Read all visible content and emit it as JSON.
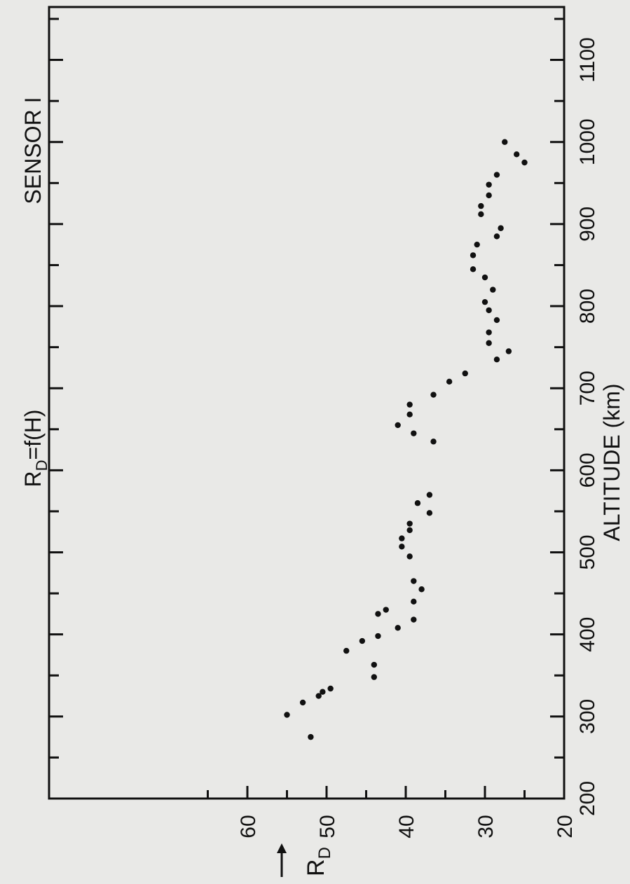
{
  "chart_data": {
    "type": "scatter",
    "title": "R",
    "title_subscript": "D",
    "title_suffix": "=f(H)",
    "subtitle": "SENSOR I",
    "xlabel": "ALTITUDE (km)",
    "ylabel": "R",
    "ylabel_subscript": "D",
    "xlim": [
      200,
      1200
    ],
    "ylim": [
      20,
      70
    ],
    "xticks": [
      200,
      300,
      400,
      500,
      600,
      700,
      800,
      900,
      1000,
      1100
    ],
    "yticks": [
      20,
      30,
      40,
      50,
      60
    ],
    "grid": false,
    "orientation": "rotated 90 degrees counterclockwise",
    "x": [
      275,
      302,
      317,
      325,
      330,
      334,
      348,
      363,
      380,
      392,
      398,
      408,
      418,
      425,
      430,
      440,
      455,
      465,
      495,
      507,
      517,
      527,
      535,
      548,
      560,
      570,
      635,
      645,
      655,
      668,
      680,
      692,
      708,
      718,
      735,
      745,
      755,
      768,
      783,
      795,
      805,
      820,
      835,
      845,
      862,
      875,
      885,
      895,
      912,
      922,
      935,
      948,
      960,
      975,
      985,
      1000
    ],
    "y": [
      52,
      55,
      53,
      51,
      50.5,
      49.5,
      44,
      44,
      47.5,
      45.5,
      43.5,
      41,
      39,
      43.5,
      42.5,
      39,
      38,
      39,
      39.5,
      40.5,
      40.5,
      39.5,
      39.5,
      37,
      38.5,
      37,
      36.5,
      39,
      41,
      39.5,
      39.5,
      36.5,
      34.5,
      32.5,
      28.5,
      27,
      29.5,
      29.5,
      28.5,
      29.5,
      30,
      29,
      30,
      31.5,
      31.5,
      31,
      28.5,
      28,
      30.5,
      30.5,
      29.5,
      29.5,
      28.5,
      25,
      26,
      27.5
    ]
  }
}
